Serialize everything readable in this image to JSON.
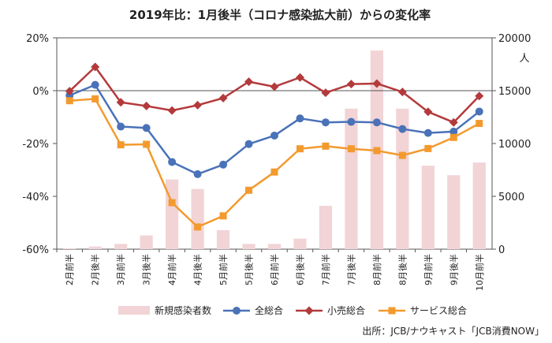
{
  "chart_data": {
    "type": "bar+line",
    "title": "2019年比：1月後半（コロナ感染拡大前）からの変化率",
    "categories": [
      "2月前半",
      "2月後半",
      "3月前半",
      "3月後半",
      "4月前半",
      "4月後半",
      "5月前半",
      "5月後半",
      "6月前半",
      "6月後半",
      "7月前半",
      "7月後半",
      "8月前半",
      "8月後半",
      "9月前半",
      "9月後半",
      "10月前半"
    ],
    "left_axis": {
      "min": -60,
      "max": 20,
      "step": 20,
      "ticks": [
        "20%",
        "0%",
        "-20%",
        "-40%",
        "-60%"
      ]
    },
    "right_axis": {
      "min": 0,
      "max": 20000,
      "step": 5000,
      "ticks": [
        "20000",
        "15000",
        "10000",
        "5000",
        "0"
      ],
      "unit": "人"
    },
    "bars": {
      "name": "新規感染者数",
      "axis": "right",
      "color": "#f2d4d6",
      "values": [
        80,
        250,
        500,
        1300,
        6600,
        5700,
        1800,
        500,
        500,
        1000,
        4100,
        13300,
        18800,
        13300,
        7900,
        7000,
        8200
      ]
    },
    "series": [
      {
        "name": "全総合",
        "axis": "left",
        "color": "#4a72b8",
        "marker": "circle",
        "values": [
          -1.8,
          2.2,
          -13.6,
          -14.1,
          -27.0,
          -31.6,
          -28.0,
          -20.2,
          -17.0,
          -10.5,
          -12.0,
          -11.8,
          -12.0,
          -14.5,
          -16.0,
          -15.5,
          -7.9
        ]
      },
      {
        "name": "小売総合",
        "axis": "left",
        "color": "#b33a3c",
        "marker": "diamond",
        "values": [
          -0.2,
          9.0,
          -4.4,
          -5.8,
          -7.5,
          -5.5,
          -2.8,
          3.4,
          1.5,
          5.0,
          -0.8,
          2.5,
          2.7,
          -0.5,
          -8.0,
          -12.0,
          -2.0
        ]
      },
      {
        "name": "サービス総合",
        "axis": "left",
        "color": "#f39a2e",
        "marker": "square",
        "values": [
          -3.8,
          -3.1,
          -20.5,
          -20.3,
          -42.4,
          -51.6,
          -47.4,
          -37.7,
          -30.8,
          -22.0,
          -21.0,
          -22.0,
          -22.7,
          -24.5,
          -21.9,
          -17.7,
          -12.4
        ]
      }
    ],
    "legend_position": "bottom",
    "grid": false,
    "source": "出所：JCB/ナウキャスト「JCB消費NOW」"
  }
}
